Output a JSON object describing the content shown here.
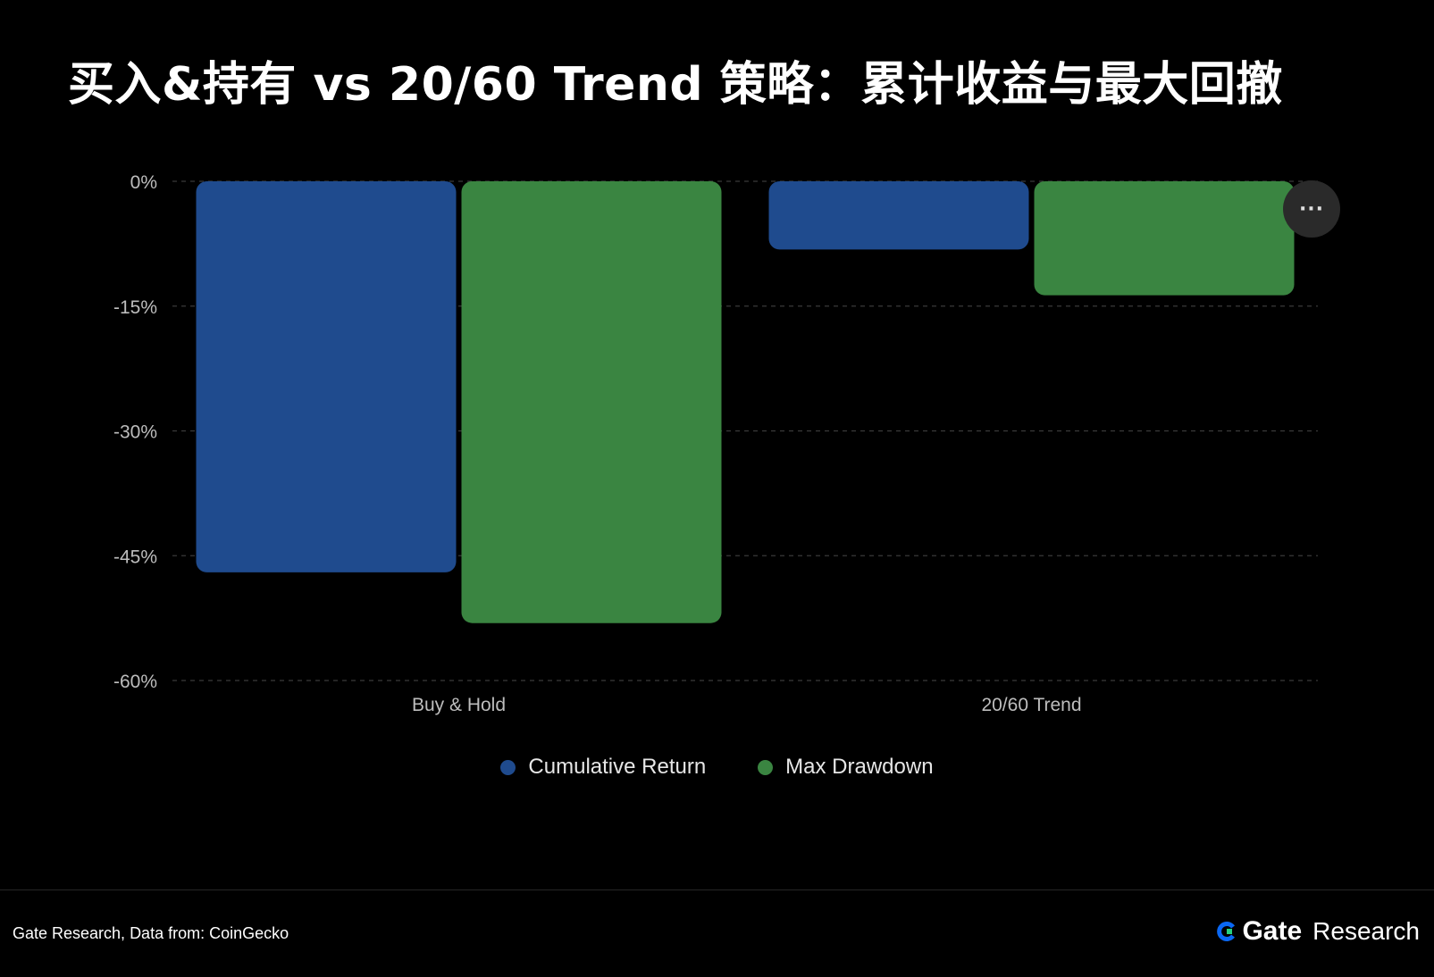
{
  "title": "买入&持有 vs 20/60 Trend 策略：累计收益与最大回撤",
  "chart_data": {
    "type": "bar",
    "categories": [
      "Buy & Hold",
      "20/60 Trend"
    ],
    "series": [
      {
        "name": "Cumulative Return",
        "values": [
          -47,
          -8.2
        ],
        "color": "#1f4b8e"
      },
      {
        "name": "Max Drawdown",
        "values": [
          -53.1,
          -13.7
        ],
        "color": "#3a8541"
      }
    ],
    "ylim": [
      -60,
      0
    ],
    "yticks": [
      0,
      -15,
      -30,
      -45,
      -60
    ],
    "ytick_labels": [
      "0%",
      "-15%",
      "-30%",
      "-45%",
      "-60%"
    ],
    "grid": true,
    "legend_position": "bottom"
  },
  "more_button_label": "···",
  "footer": {
    "source": "Gate Research, Data from: CoinGecko",
    "brand_name": "Gate",
    "brand_suffix": "Research",
    "brand_color": "#0a68f4"
  }
}
